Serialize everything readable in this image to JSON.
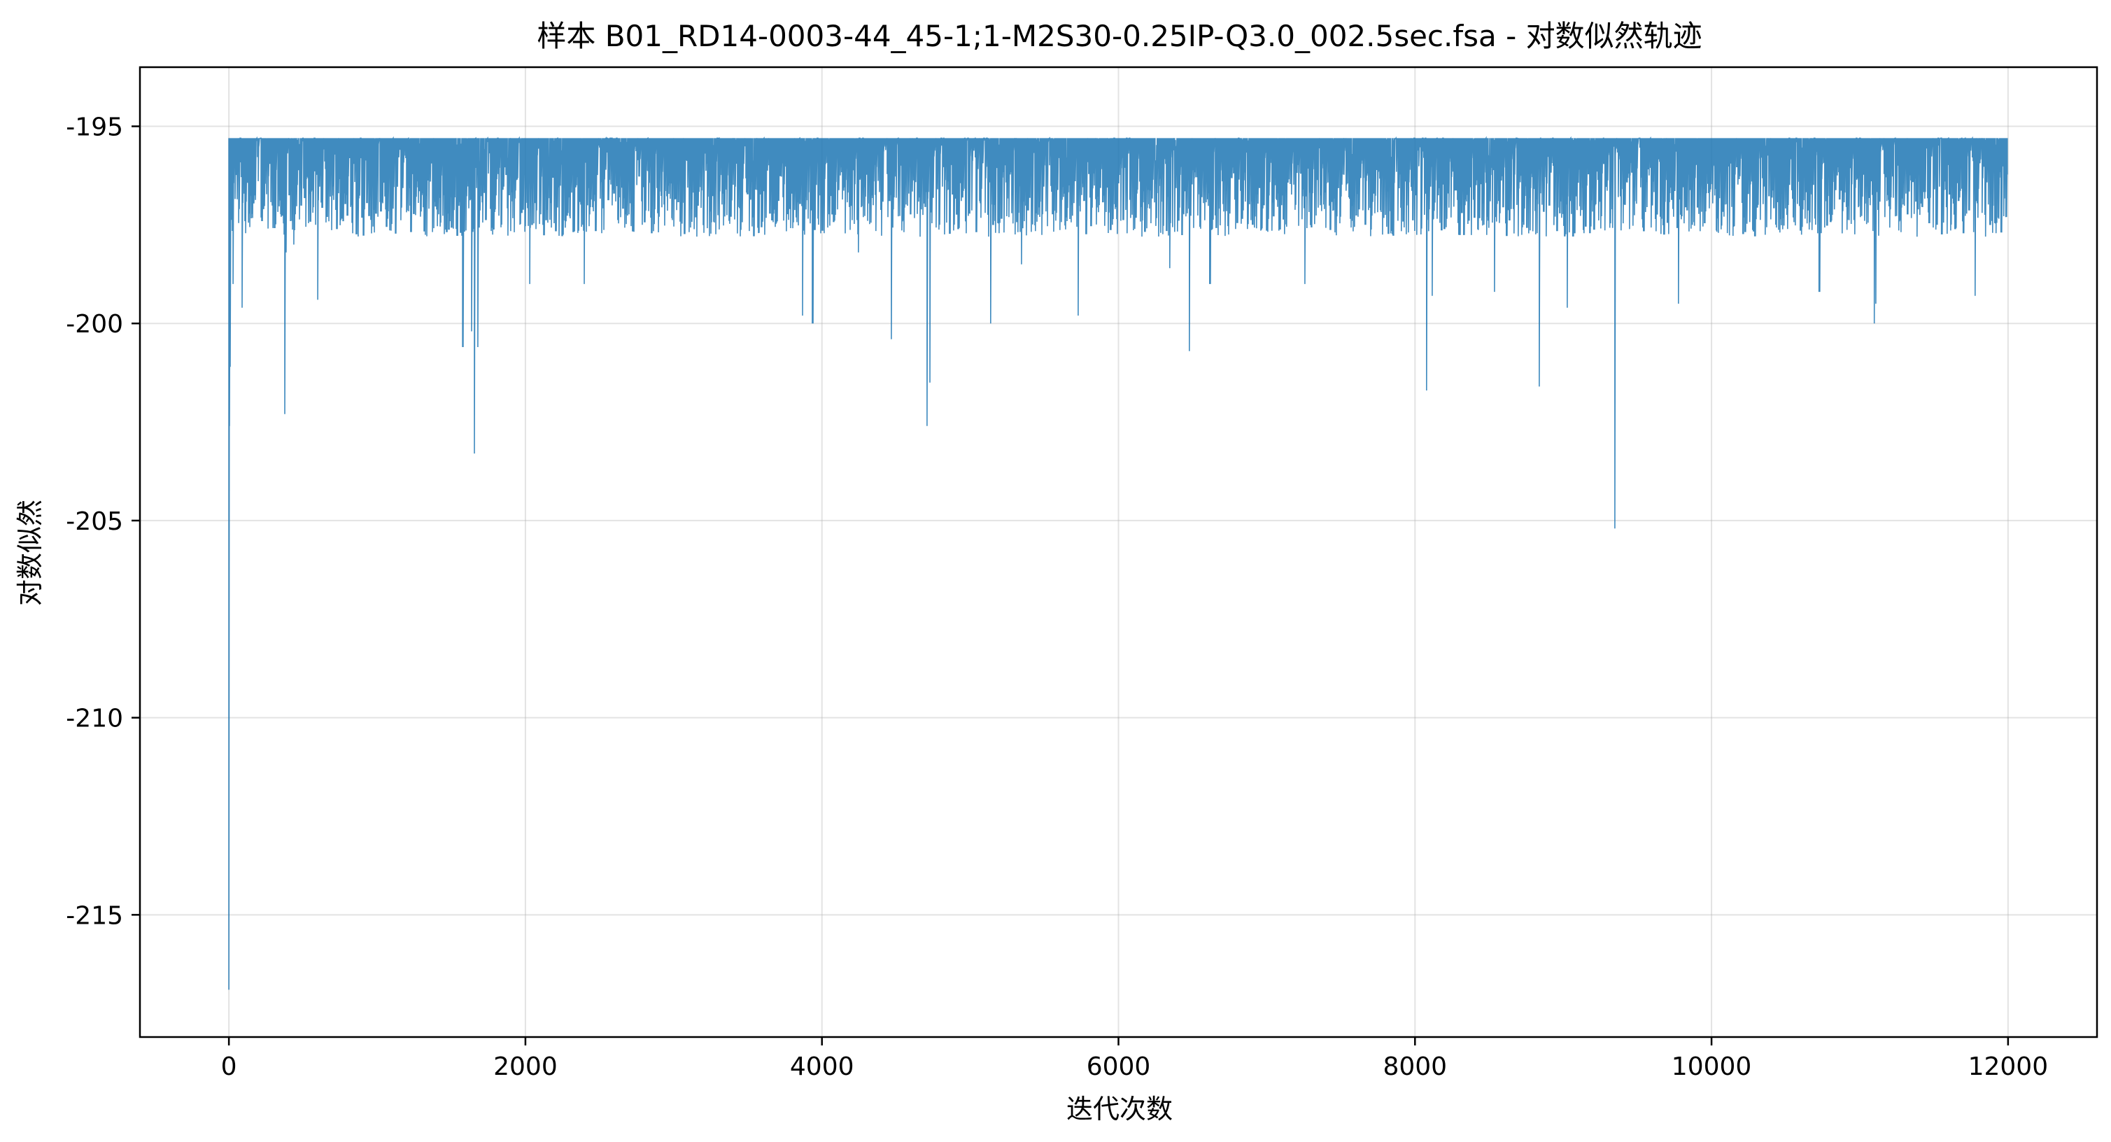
{
  "chart_data": {
    "type": "line",
    "title": "样本 B01_RD14-0003-44_45-1;1-M2S30-0.25IP-Q3.0_002.5sec.fsa - 对数似然轨迹",
    "xlabel": "迭代次数",
    "ylabel": "对数似然",
    "xlim": [
      -600,
      12600
    ],
    "ylim": [
      -218.1,
      -193.5
    ],
    "xticks": [
      0,
      2000,
      4000,
      6000,
      8000,
      10000,
      12000
    ],
    "xtick_labels": [
      "0",
      "2000",
      "4000",
      "6000",
      "8000",
      "10000",
      "12000"
    ],
    "yticks": [
      -195,
      -200,
      -205,
      -210,
      -215
    ],
    "ytick_labels": [
      "-195",
      "-200",
      "-205",
      "-210",
      "-215"
    ],
    "grid": true,
    "legend": "none",
    "colors": {
      "line": "#1f77b4"
    },
    "series": [
      {
        "n_iterations": 12000,
        "plateau_value": -195.3,
        "typical_dip_range": [
          -195.3,
          -197.8
        ],
        "notable_points": [
          {
            "x": 0,
            "y": -216.9
          },
          {
            "x": 5,
            "y": -202.6
          },
          {
            "x": 10,
            "y": -201.1
          },
          {
            "x": 30,
            "y": -199.0
          },
          {
            "x": 90,
            "y": -199.6
          },
          {
            "x": 380,
            "y": -202.3
          },
          {
            "x": 390,
            "y": -198.2
          },
          {
            "x": 440,
            "y": -198.0
          },
          {
            "x": 600,
            "y": -199.4
          },
          {
            "x": 1580,
            "y": -200.6
          },
          {
            "x": 1640,
            "y": -200.2
          },
          {
            "x": 1660,
            "y": -203.3
          },
          {
            "x": 1680,
            "y": -200.6
          },
          {
            "x": 2030,
            "y": -199.0
          },
          {
            "x": 2400,
            "y": -199.0
          },
          {
            "x": 3870,
            "y": -199.8
          },
          {
            "x": 3940,
            "y": -200.0
          },
          {
            "x": 4250,
            "y": -198.2
          },
          {
            "x": 4470,
            "y": -200.4
          },
          {
            "x": 4710,
            "y": -202.6
          },
          {
            "x": 4730,
            "y": -201.5
          },
          {
            "x": 5140,
            "y": -200.0
          },
          {
            "x": 5350,
            "y": -198.5
          },
          {
            "x": 5730,
            "y": -199.8
          },
          {
            "x": 6350,
            "y": -198.6
          },
          {
            "x": 6480,
            "y": -200.7
          },
          {
            "x": 6620,
            "y": -199.0
          },
          {
            "x": 7260,
            "y": -199.0
          },
          {
            "x": 8080,
            "y": -201.7
          },
          {
            "x": 8120,
            "y": -199.3
          },
          {
            "x": 8540,
            "y": -199.2
          },
          {
            "x": 8840,
            "y": -201.6
          },
          {
            "x": 9030,
            "y": -199.6
          },
          {
            "x": 9350,
            "y": -205.2
          },
          {
            "x": 9780,
            "y": -199.5
          },
          {
            "x": 10730,
            "y": -199.2
          },
          {
            "x": 11100,
            "y": -200.0
          },
          {
            "x": 11110,
            "y": -199.5
          },
          {
            "x": 11780,
            "y": -199.3
          },
          {
            "x": 11990,
            "y": -197.3
          }
        ]
      }
    ]
  }
}
